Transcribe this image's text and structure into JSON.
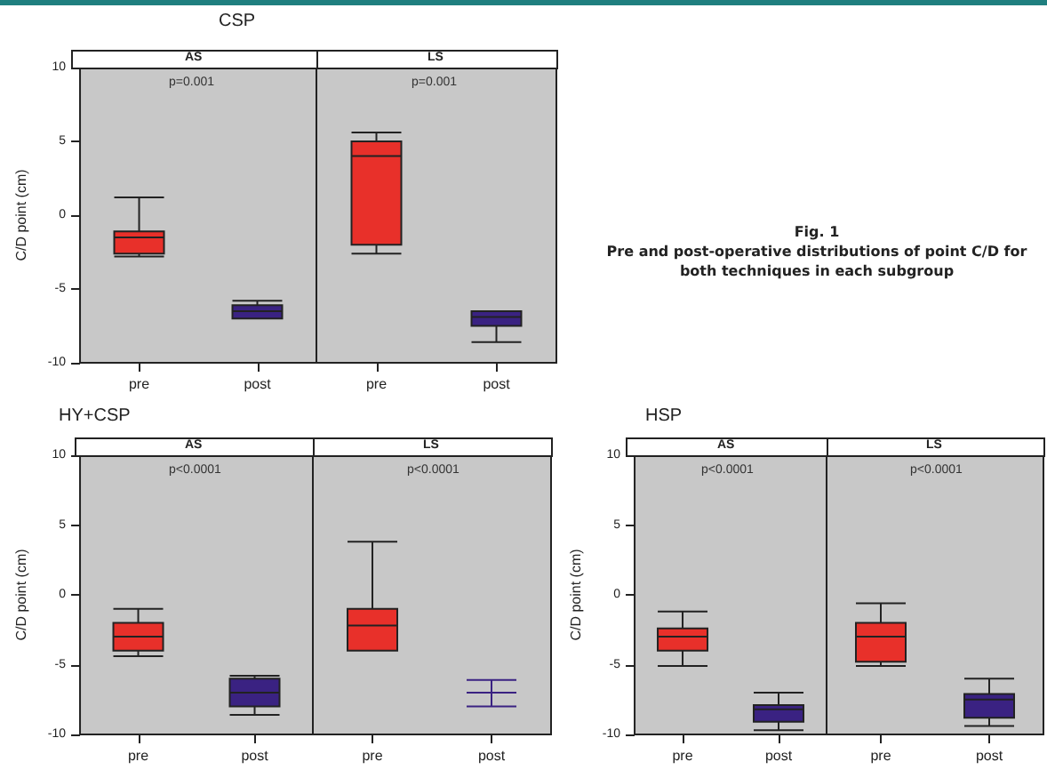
{
  "chart_data": [
    {
      "type": "box",
      "title": "CSP",
      "subtitle": "AS",
      "ylabel": "C/D point (cm)",
      "annotations": [
        "p=0.001"
      ],
      "categories": [
        "pre",
        "post"
      ],
      "colors": [
        "#e8302a",
        "#3a2282"
      ],
      "ylim": [
        -10,
        10
      ],
      "yticks": [
        -10,
        -5,
        0,
        5,
        10
      ],
      "grid": false,
      "boxes": [
        {
          "low": -2.8,
          "q1": -2.6,
          "median": -1.5,
          "q3": -1.1,
          "high": 1.2
        },
        {
          "low": -7,
          "q1": -7,
          "median": -6.5,
          "q3": -6.1,
          "high": -5.8
        }
      ]
    },
    {
      "type": "box",
      "subtitle": "LS",
      "annotations": [
        "p=0.001"
      ],
      "categories": [
        "pre",
        "post"
      ],
      "colors": [
        "#e8302a",
        "#3a2282"
      ],
      "ylim": [
        -10,
        10
      ],
      "yticks": [
        -10,
        -5,
        0,
        5,
        10
      ],
      "grid": false,
      "tick_labels": "x",
      "boxes": [
        {
          "low": -2.6,
          "q1": -2,
          "median": 4,
          "q3": 5,
          "high": 5.6
        },
        {
          "low": -8.6,
          "q1": -7.5,
          "median": -6.9,
          "q3": -6.5,
          "high": -6.5
        }
      ]
    },
    {
      "type": "box",
      "title": "HY+CSP",
      "subtitle": "AS",
      "ylabel": "C/D point (cm)",
      "annotations": [
        "p<0.0001"
      ],
      "categories": [
        "pre",
        "post"
      ],
      "colors": [
        "#e8302a",
        "#3a2282"
      ],
      "ylim": [
        -10,
        10
      ],
      "yticks": [
        -10,
        -5,
        0,
        5,
        10
      ],
      "grid": false,
      "boxes": [
        {
          "low": -4.4,
          "q1": -4,
          "median": -3,
          "q3": -2,
          "high": -1
        },
        {
          "low": -8.6,
          "q1": -8,
          "median": -7,
          "q3": -6,
          "high": -5.8
        }
      ]
    },
    {
      "type": "box",
      "subtitle": "LS",
      "annotations": [
        "p<0.0001"
      ],
      "categories": [
        "pre",
        "post"
      ],
      "colors": [
        "#e8302a",
        "#3a2282"
      ],
      "ylim": [
        -10,
        10
      ],
      "yticks": [
        -10,
        -5,
        0,
        5,
        10
      ],
      "grid": false,
      "tick_labels": "x",
      "boxes": [
        {
          "low": -4,
          "q1": -4,
          "median": -2.2,
          "q3": -1,
          "high": 3.8
        },
        {
          "low": -8,
          "q1": -7,
          "median": -7,
          "q3": -7,
          "high": -6.1
        }
      ]
    },
    {
      "type": "box",
      "title": "HSP",
      "subtitle": "AS",
      "ylabel": "C/D point (cm)",
      "annotations": [
        "p<0.0001"
      ],
      "categories": [
        "pre",
        "post"
      ],
      "colors": [
        "#e8302a",
        "#3a2282"
      ],
      "ylim": [
        -10,
        10
      ],
      "yticks": [
        -10,
        -5,
        0,
        5,
        10
      ],
      "grid": false,
      "boxes": [
        {
          "low": -5.1,
          "q1": -4,
          "median": -3,
          "q3": -2.4,
          "high": -1.2
        },
        {
          "low": -9.7,
          "q1": -9.1,
          "median": -8.2,
          "q3": -7.9,
          "high": -7
        }
      ]
    },
    {
      "type": "box",
      "subtitle": "LS",
      "annotations": [
        "p<0.0001"
      ],
      "categories": [
        "pre",
        "post"
      ],
      "colors": [
        "#e8302a",
        "#3a2282"
      ],
      "ylim": [
        -10,
        10
      ],
      "yticks": [
        -10,
        -5,
        0,
        5,
        10
      ],
      "grid": false,
      "tick_labels": "x",
      "boxes": [
        {
          "low": -5.1,
          "q1": -4.8,
          "median": -3,
          "q3": -2,
          "high": -0.6
        },
        {
          "low": -9.4,
          "q1": -8.8,
          "median": -7.5,
          "q3": -7.1,
          "high": -6
        }
      ]
    },
    {
      "type": "other",
      "title": "Fig. 1",
      "annotations": [
        "Pre and post-operative distributions of point C/D for both techniques in each subgroup"
      ]
    }
  ]
}
